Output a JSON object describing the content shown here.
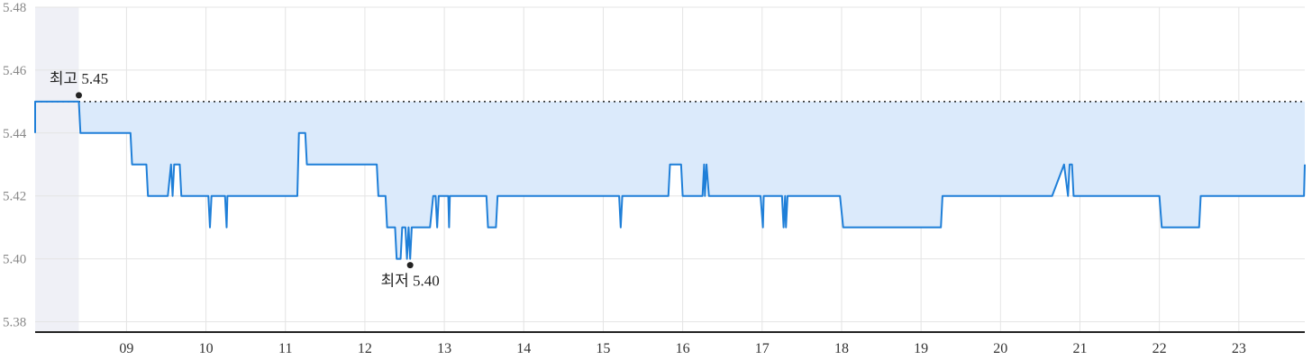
{
  "chart_data": {
    "type": "line",
    "y_ticks": [
      "5.48",
      "5.46",
      "5.44",
      "5.42",
      "5.40",
      "5.38"
    ],
    "x_ticks": [
      "09",
      "10",
      "11",
      "12",
      "13",
      "14",
      "15",
      "16",
      "17",
      "18",
      "19",
      "20",
      "21",
      "22",
      "23"
    ],
    "ylim": [
      5.377,
      5.48
    ],
    "xlim": [
      7.85,
      23.83
    ],
    "grid": true,
    "reference_line": 5.45,
    "shaded_region": [
      7.85,
      8.4
    ],
    "annotations": {
      "high": {
        "label": "최고 5.45",
        "x": 8.4,
        "y": 5.45
      },
      "low": {
        "label": "최저 5.40",
        "x": 12.57,
        "y": 5.4
      }
    },
    "series": [
      {
        "values": [
          [
            7.85,
            5.44
          ],
          [
            7.85,
            5.45
          ],
          [
            8.4,
            5.45
          ],
          [
            8.42,
            5.44
          ],
          [
            9.05,
            5.44
          ],
          [
            9.07,
            5.43
          ],
          [
            9.25,
            5.43
          ],
          [
            9.27,
            5.42
          ],
          [
            9.52,
            5.42
          ],
          [
            9.56,
            5.43
          ],
          [
            9.58,
            5.42
          ],
          [
            9.6,
            5.43
          ],
          [
            9.67,
            5.43
          ],
          [
            9.69,
            5.42
          ],
          [
            10.03,
            5.42
          ],
          [
            10.05,
            5.41
          ],
          [
            10.07,
            5.42
          ],
          [
            10.24,
            5.42
          ],
          [
            10.26,
            5.41
          ],
          [
            10.27,
            5.42
          ],
          [
            11.15,
            5.42
          ],
          [
            11.17,
            5.44
          ],
          [
            11.25,
            5.44
          ],
          [
            11.27,
            5.43
          ],
          [
            12.15,
            5.43
          ],
          [
            12.17,
            5.42
          ],
          [
            12.26,
            5.42
          ],
          [
            12.28,
            5.41
          ],
          [
            12.38,
            5.41
          ],
          [
            12.4,
            5.4
          ],
          [
            12.45,
            5.4
          ],
          [
            12.47,
            5.41
          ],
          [
            12.51,
            5.41
          ],
          [
            12.53,
            5.4
          ],
          [
            12.55,
            5.41
          ],
          [
            12.57,
            5.4
          ],
          [
            12.59,
            5.41
          ],
          [
            12.82,
            5.41
          ],
          [
            12.86,
            5.42
          ],
          [
            12.89,
            5.42
          ],
          [
            12.91,
            5.41
          ],
          [
            12.93,
            5.42
          ],
          [
            13.05,
            5.42
          ],
          [
            13.06,
            5.41
          ],
          [
            13.07,
            5.42
          ],
          [
            13.53,
            5.42
          ],
          [
            13.55,
            5.41
          ],
          [
            13.65,
            5.41
          ],
          [
            13.67,
            5.42
          ],
          [
            15.2,
            5.42
          ],
          [
            15.22,
            5.41
          ],
          [
            15.24,
            5.42
          ],
          [
            15.82,
            5.42
          ],
          [
            15.84,
            5.43
          ],
          [
            15.98,
            5.43
          ],
          [
            16.0,
            5.42
          ],
          [
            16.25,
            5.42
          ],
          [
            16.27,
            5.43
          ],
          [
            16.28,
            5.42
          ],
          [
            16.3,
            5.43
          ],
          [
            16.33,
            5.42
          ],
          [
            16.98,
            5.42
          ],
          [
            17.01,
            5.41
          ],
          [
            17.02,
            5.42
          ],
          [
            17.25,
            5.42
          ],
          [
            17.27,
            5.41
          ],
          [
            17.29,
            5.42
          ],
          [
            17.3,
            5.41
          ],
          [
            17.32,
            5.42
          ],
          [
            17.98,
            5.42
          ],
          [
            18.02,
            5.41
          ],
          [
            19.25,
            5.41
          ],
          [
            19.27,
            5.42
          ],
          [
            20.65,
            5.42
          ],
          [
            20.8,
            5.43
          ],
          [
            20.85,
            5.42
          ],
          [
            20.87,
            5.43
          ],
          [
            20.9,
            5.43
          ],
          [
            20.92,
            5.42
          ],
          [
            22.0,
            5.42
          ],
          [
            22.03,
            5.41
          ],
          [
            22.5,
            5.41
          ],
          [
            22.52,
            5.42
          ],
          [
            23.82,
            5.42
          ],
          [
            23.83,
            5.43
          ]
        ]
      }
    ]
  },
  "colors": {
    "line": "#1f7fd8",
    "fill": "#dbeafb",
    "shade": "#eff0f6",
    "grid": "#e4e4e4",
    "axis": "#222222",
    "ref": "#222222"
  }
}
